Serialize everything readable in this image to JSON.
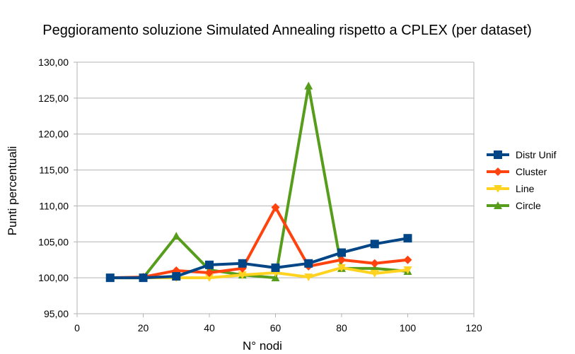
{
  "chart_data": {
    "type": "line",
    "title": "Peggioramento soluzione Simulated Annealing rispetto a CPLEX (per dataset)",
    "xlabel": "N° nodi",
    "ylabel": "Punti percentuali",
    "xlim": [
      0,
      120
    ],
    "ylim": [
      95,
      130
    ],
    "x_ticks": [
      "0",
      "20",
      "40",
      "60",
      "80",
      "100",
      "120"
    ],
    "y_ticks": [
      "95,00",
      "100,00",
      "105,00",
      "110,00",
      "115,00",
      "120,00",
      "125,00",
      "130,00"
    ],
    "x": [
      10,
      20,
      30,
      40,
      50,
      60,
      70,
      80,
      90,
      100
    ],
    "grid": "horizontal",
    "legend_position": "right",
    "series": [
      {
        "name": "Distr Unif",
        "color": "#004586",
        "marker": "square",
        "values": [
          100.0,
          100.0,
          100.2,
          101.8,
          102.0,
          101.4,
          102.0,
          103.5,
          104.7,
          105.5
        ]
      },
      {
        "name": "Cluster",
        "color": "#ff420e",
        "marker": "diamond",
        "values": [
          100.0,
          100.1,
          101.0,
          100.7,
          101.3,
          109.8,
          101.6,
          102.5,
          102.0,
          102.5
        ]
      },
      {
        "name": "Line",
        "color": "#ffd320",
        "marker": "triangle-down",
        "values": [
          100.0,
          100.0,
          100.0,
          100.0,
          100.4,
          100.7,
          100.1,
          101.4,
          100.6,
          101.1
        ]
      },
      {
        "name": "Circle",
        "color": "#579d1c",
        "marker": "triangle-up",
        "values": [
          100.0,
          100.0,
          105.8,
          101.1,
          100.4,
          100.0,
          126.7,
          101.3,
          101.3,
          100.9
        ]
      }
    ]
  }
}
